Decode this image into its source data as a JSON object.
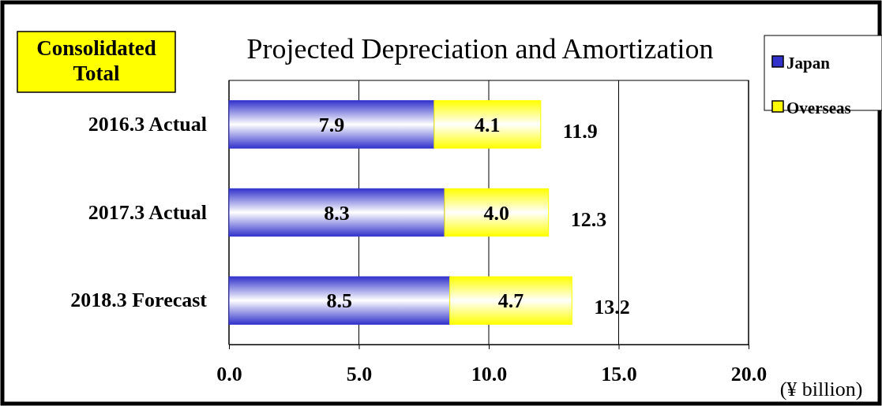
{
  "chart_data": {
    "type": "bar",
    "orientation": "horizontal",
    "stacked": true,
    "title": "Projected Depreciation and Amortization",
    "xlabel": "(¥ billion)",
    "annotations": [
      "Consolidated Total"
    ],
    "categories": [
      "2016.3 Actual",
      "2017.3 Actual",
      "2018.3 Forecast"
    ],
    "series": [
      {
        "name": "Japan",
        "color": "#3333cc",
        "values": [
          7.9,
          8.3,
          8.5
        ],
        "value_labels": [
          "7.9",
          "8.3",
          "8.5"
        ]
      },
      {
        "name": "Overseas",
        "color": "#ffff00",
        "values": [
          4.1,
          4.0,
          4.7
        ],
        "value_labels": [
          "4.1",
          "4.0",
          "4.7"
        ]
      }
    ],
    "totals": [
      "11.9",
      "12.3",
      "13.2"
    ],
    "xlim": [
      0,
      20
    ],
    "xticks": [
      {
        "value": 0,
        "label": "0.0"
      },
      {
        "value": 5,
        "label": "5.0"
      },
      {
        "value": 10,
        "label": "10.0"
      },
      {
        "value": 15,
        "label": "15.0"
      },
      {
        "value": 20,
        "label": "20.0"
      }
    ],
    "grid": "x",
    "legend": "top right"
  }
}
